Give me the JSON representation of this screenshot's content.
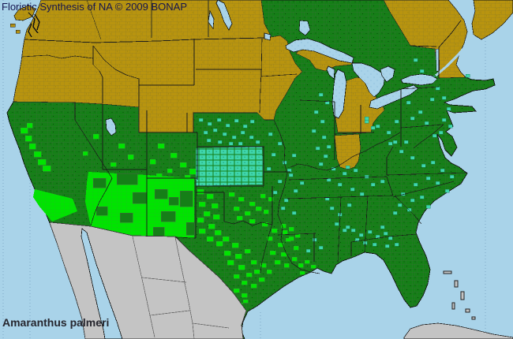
{
  "header": {
    "title": "Floristic Synthesis of NA © 2009 BONAP"
  },
  "map": {
    "species_label": "Amaranthus palmeri",
    "colors": {
      "ocean_water": "#A9D3E9",
      "state_present_dark_green": "#157F17",
      "county_present_bright_green": "#00E400",
      "county_rare_teal": "#3FD6AC",
      "state_absent_gold": "#B8940F",
      "outside_region_gray": "#C4C4C4",
      "county_border": "#6E6E52",
      "state_border": "#1B1B1B"
    },
    "legend_semantics": {
      "dark_green": "species present in state",
      "bright_green": "county-level presence",
      "teal": "county-level presence (rare)",
      "gold": "species not present",
      "gray": "outside floristic area",
      "light_blue": "water"
    }
  }
}
